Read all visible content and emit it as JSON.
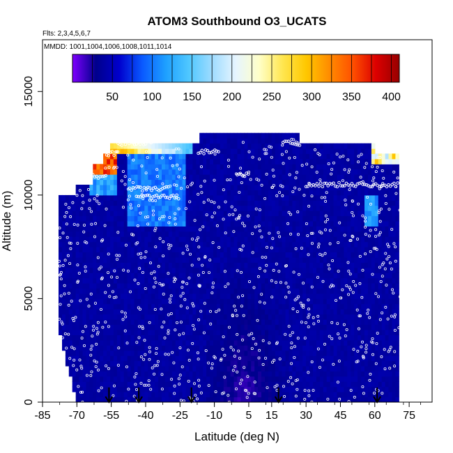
{
  "chart_data": {
    "type": "heatmap",
    "title": "ATOM3 Southbound O3_UCATS",
    "subtitle_flights": "Flts: 2,3,4,5,6,7",
    "subtitle_dates": "MMDD: 1001,1004,1006,1008,1011,1014",
    "xlabel": "Latitude (deg N)",
    "ylabel": "Altitude (m)",
    "xlim": [
      -85,
      85
    ],
    "ylim": [
      0,
      17500
    ],
    "x_tick_labels": [
      "-85",
      "-70",
      "-55",
      "-40",
      "-25",
      "-10",
      "5",
      "15",
      "30",
      "45",
      "60",
      "75"
    ],
    "y_tick_labels": [
      "0",
      "5000",
      "10000",
      "15000"
    ],
    "colorbar": {
      "min": 0,
      "max": 410,
      "tick_labels": [
        "50",
        "100",
        "150",
        "200",
        "250",
        "300",
        "350",
        "400"
      ],
      "colors": [
        "#7f00ff",
        "#00008b",
        "#0000cd",
        "#0a5aff",
        "#1ea0ff",
        "#50c8ff",
        "#a0dcff",
        "#e6f5ff",
        "#ffffc8",
        "#ffe650",
        "#ffc800",
        "#ff8c00",
        "#ff5000",
        "#dc0000",
        "#960000"
      ]
    },
    "flight_profile_markers_lat": [
      -56,
      -43,
      -20,
      18,
      61
    ],
    "data_region": {
      "lat_range": [
        -78,
        71
      ],
      "alt_range": [
        0,
        12900
      ]
    },
    "notes_values": {
      "typical_O3_ppb_troposphere": 40,
      "upper_altitude_max_O3_ppb": 400
    }
  }
}
